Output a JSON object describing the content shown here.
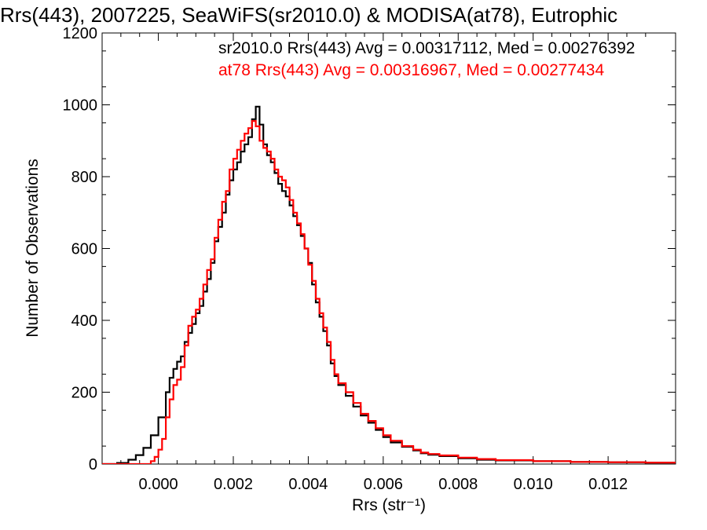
{
  "chart_data": {
    "type": "histogram",
    "title": "Rrs(443), 2007225, SeaWiFS(sr2010.0) & MODISA(at78), Eutrophic",
    "xlabel": "Rrs (str⁻¹)",
    "ylabel": "Number of Observations",
    "xlim": [
      -0.0015,
      0.0138
    ],
    "ylim": [
      0,
      1200
    ],
    "xticks": [
      0.0,
      0.002,
      0.004,
      0.006,
      0.008,
      0.01,
      0.012
    ],
    "xtick_labels": [
      "0.000",
      "0.002",
      "0.004",
      "0.006",
      "0.008",
      "0.010",
      "0.012"
    ],
    "yticks": [
      0,
      200,
      400,
      600,
      800,
      1000,
      1200
    ],
    "ytick_labels": [
      "0",
      "200",
      "400",
      "600",
      "800",
      "1000",
      "1200"
    ],
    "grid": false,
    "legend_placement": "top-right",
    "annotations": [
      {
        "text": "sr2010.0 Rrs(443) Avg = 0.00317112, Med = 0.00276392",
        "color": "#000000"
      },
      {
        "text": "at78 Rrs(443) Avg = 0.00316967, Med = 0.00277434",
        "color": "#ff0000"
      }
    ],
    "series": [
      {
        "color": "#000000",
        "points": [
          [
            -0.0015,
            0
          ],
          [
            -0.0011,
            3
          ],
          [
            -0.0008,
            12
          ],
          [
            -0.0006,
            25
          ],
          [
            -0.0004,
            45
          ],
          [
            -0.0002,
            80
          ],
          [
            0.0,
            130
          ],
          [
            0.0002,
            200
          ],
          [
            0.0003,
            240
          ],
          [
            0.0004,
            265
          ],
          [
            0.0005,
            285
          ],
          [
            0.0006,
            300
          ],
          [
            0.0007,
            340
          ],
          [
            0.0008,
            365
          ],
          [
            0.0009,
            390
          ],
          [
            0.001,
            420
          ],
          [
            0.0011,
            440
          ],
          [
            0.0012,
            480
          ],
          [
            0.0013,
            515
          ],
          [
            0.0014,
            560
          ],
          [
            0.0015,
            620
          ],
          [
            0.0016,
            660
          ],
          [
            0.0017,
            700
          ],
          [
            0.0018,
            750
          ],
          [
            0.0019,
            790
          ],
          [
            0.002,
            820
          ],
          [
            0.0021,
            840
          ],
          [
            0.0022,
            870
          ],
          [
            0.0023,
            890
          ],
          [
            0.0024,
            910
          ],
          [
            0.0025,
            960
          ],
          [
            0.0026,
            995
          ],
          [
            0.0027,
            945
          ],
          [
            0.0028,
            890
          ],
          [
            0.0029,
            860
          ],
          [
            0.003,
            840
          ],
          [
            0.0031,
            810
          ],
          [
            0.0032,
            780
          ],
          [
            0.0033,
            760
          ],
          [
            0.0034,
            745
          ],
          [
            0.0035,
            720
          ],
          [
            0.0036,
            690
          ],
          [
            0.0037,
            665
          ],
          [
            0.0038,
            635
          ],
          [
            0.0039,
            600
          ],
          [
            0.004,
            560
          ],
          [
            0.0041,
            500
          ],
          [
            0.0042,
            450
          ],
          [
            0.0043,
            410
          ],
          [
            0.0044,
            370
          ],
          [
            0.0045,
            330
          ],
          [
            0.0046,
            280
          ],
          [
            0.0047,
            245
          ],
          [
            0.0048,
            220
          ],
          [
            0.005,
            190
          ],
          [
            0.0052,
            160
          ],
          [
            0.0054,
            135
          ],
          [
            0.0056,
            115
          ],
          [
            0.0058,
            95
          ],
          [
            0.006,
            75
          ],
          [
            0.0062,
            60
          ],
          [
            0.0065,
            48
          ],
          [
            0.0068,
            38
          ],
          [
            0.007,
            30
          ],
          [
            0.0072,
            26
          ],
          [
            0.0075,
            22
          ],
          [
            0.008,
            16
          ],
          [
            0.0085,
            12
          ],
          [
            0.009,
            10
          ],
          [
            0.01,
            8
          ],
          [
            0.011,
            6
          ],
          [
            0.012,
            5
          ],
          [
            0.013,
            4
          ],
          [
            0.0138,
            3
          ]
        ]
      },
      {
        "color": "#ff0000",
        "points": [
          [
            -0.0015,
            0
          ],
          [
            -0.0004,
            0
          ],
          [
            -0.0002,
            8
          ],
          [
            -0.0001,
            20
          ],
          [
            0.0,
            40
          ],
          [
            0.0001,
            70
          ],
          [
            0.0002,
            130
          ],
          [
            0.0003,
            180
          ],
          [
            0.0004,
            220
          ],
          [
            0.0005,
            235
          ],
          [
            0.0006,
            270
          ],
          [
            0.0007,
            330
          ],
          [
            0.0008,
            385
          ],
          [
            0.0009,
            410
          ],
          [
            0.001,
            430
          ],
          [
            0.0011,
            460
          ],
          [
            0.0012,
            500
          ],
          [
            0.0013,
            540
          ],
          [
            0.0014,
            570
          ],
          [
            0.0015,
            630
          ],
          [
            0.0016,
            680
          ],
          [
            0.0017,
            730
          ],
          [
            0.0018,
            760
          ],
          [
            0.0019,
            820
          ],
          [
            0.002,
            850
          ],
          [
            0.0021,
            875
          ],
          [
            0.0022,
            900
          ],
          [
            0.0023,
            920
          ],
          [
            0.0024,
            935
          ],
          [
            0.0025,
            955
          ],
          [
            0.0026,
            940
          ],
          [
            0.0027,
            900
          ],
          [
            0.0028,
            880
          ],
          [
            0.0029,
            870
          ],
          [
            0.003,
            850
          ],
          [
            0.0031,
            820
          ],
          [
            0.0032,
            800
          ],
          [
            0.0033,
            790
          ],
          [
            0.0034,
            770
          ],
          [
            0.0035,
            735
          ],
          [
            0.0036,
            700
          ],
          [
            0.0037,
            670
          ],
          [
            0.0038,
            640
          ],
          [
            0.0039,
            600
          ],
          [
            0.004,
            555
          ],
          [
            0.0041,
            510
          ],
          [
            0.0042,
            460
          ],
          [
            0.0043,
            420
          ],
          [
            0.0044,
            380
          ],
          [
            0.0045,
            340
          ],
          [
            0.0046,
            290
          ],
          [
            0.0047,
            250
          ],
          [
            0.0048,
            225
          ],
          [
            0.005,
            200
          ],
          [
            0.0052,
            170
          ],
          [
            0.0054,
            140
          ],
          [
            0.0056,
            120
          ],
          [
            0.0058,
            100
          ],
          [
            0.006,
            80
          ],
          [
            0.0062,
            65
          ],
          [
            0.0065,
            50
          ],
          [
            0.0068,
            40
          ],
          [
            0.007,
            32
          ],
          [
            0.0072,
            28
          ],
          [
            0.0075,
            24
          ],
          [
            0.008,
            18
          ],
          [
            0.0085,
            14
          ],
          [
            0.009,
            11
          ],
          [
            0.01,
            8
          ],
          [
            0.011,
            6
          ],
          [
            0.012,
            5
          ],
          [
            0.013,
            4
          ],
          [
            0.0138,
            3
          ]
        ]
      }
    ]
  }
}
